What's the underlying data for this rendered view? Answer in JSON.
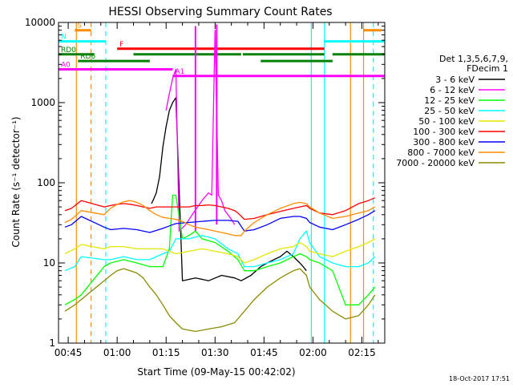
{
  "chart_data": {
    "type": "line",
    "title": "HESSI Observing Summary Count Rates",
    "xlabel": "Start Time (09-May-15 00:42:02)",
    "ylabel": "Count Rate (s⁻¹ detector⁻¹)",
    "x_unit": "minutes after 00:00 UT, 09-May-15",
    "xlim": [
      42.03,
      142
    ],
    "ylim": [
      1,
      10000
    ],
    "y_scale": "log",
    "grid": false,
    "x_ticks": [
      {
        "value": 45,
        "label": "00:45"
      },
      {
        "value": 60,
        "label": "01:00"
      },
      {
        "value": 75,
        "label": "01:15"
      },
      {
        "value": 90,
        "label": "01:30"
      },
      {
        "value": 105,
        "label": "01:45"
      },
      {
        "value": 120,
        "label": "02:00"
      },
      {
        "value": 135,
        "label": "02:15"
      }
    ],
    "y_ticks": [
      {
        "value": 1,
        "label": "1"
      },
      {
        "value": 10,
        "label": "10"
      },
      {
        "value": 100,
        "label": "100"
      },
      {
        "value": 1000,
        "label": "1000"
      },
      {
        "value": 10000,
        "label": "10000"
      }
    ],
    "legend": {
      "placement": "right",
      "header": [
        "Det 1,3,5,6,7,9,",
        "FDecim 1"
      ],
      "entries": [
        {
          "label": "3 - 6 keV",
          "color": "#000000"
        },
        {
          "label": "6 - 12 keV",
          "color": "#ff00ff"
        },
        {
          "label": "12 - 25 keV",
          "color": "#00ff00"
        },
        {
          "label": "25 - 50 keV",
          "color": "#00ffff"
        },
        {
          "label": "50 - 100 keV",
          "color": "#e6e600"
        },
        {
          "label": "100 - 300 keV",
          "color": "#ff0000"
        },
        {
          "label": "300 - 800 keV",
          "color": "#0000ff"
        },
        {
          "label": "800 - 7000 keV",
          "color": "#ff8c00"
        },
        {
          "label": "7000 - 20000 keV",
          "color": "#8b8b00"
        }
      ]
    },
    "series": [
      {
        "name": "3 - 6 keV",
        "color": "#000000",
        "x": [
          70.5,
          71,
          72,
          73,
          74,
          75,
          76,
          77,
          78,
          80,
          84,
          88,
          92,
          96,
          98,
          101,
          104,
          106,
          108,
          110,
          112,
          114,
          116,
          117,
          118
        ],
        "y": [
          55,
          60,
          75,
          120,
          280,
          500,
          800,
          1000,
          1150,
          6,
          6.5,
          6,
          7,
          6.5,
          6,
          7,
          9,
          10,
          11,
          12,
          14,
          12,
          10,
          9,
          8
        ]
      },
      {
        "name": "6 - 12 keV",
        "color": "#ff00ff",
        "x": [
          75,
          76,
          77,
          78,
          79,
          81,
          83,
          86,
          88,
          89,
          90,
          91,
          92,
          93,
          95,
          96
        ],
        "y": [
          800,
          1300,
          2000,
          2600,
          25,
          30,
          40,
          60,
          75,
          70,
          8000,
          70,
          60,
          45,
          35,
          30
        ]
      },
      {
        "name": "12 - 25 keV",
        "color": "#00ff00",
        "x": [
          44,
          47,
          49,
          56,
          58,
          62,
          66,
          70,
          74,
          76,
          77,
          78,
          80,
          82,
          84,
          86,
          90,
          94,
          97,
          99,
          102,
          106,
          110,
          114,
          116,
          118,
          119,
          122,
          126,
          130,
          134,
          137,
          139
        ],
        "y": [
          3,
          3.5,
          4,
          9,
          10,
          11,
          10,
          9,
          9,
          15,
          70,
          70,
          20,
          22,
          25,
          20,
          18,
          14,
          11,
          8,
          8,
          9,
          10,
          12,
          13,
          12,
          11,
          10,
          8,
          3,
          3,
          4,
          5
        ]
      },
      {
        "name": "25 - 50 keV",
        "color": "#00ffff",
        "x": [
          44,
          47,
          49,
          56,
          58,
          62,
          66,
          70,
          72,
          74,
          76,
          78,
          82,
          86,
          90,
          94,
          97,
          99,
          102,
          106,
          110,
          114,
          116,
          118,
          119,
          122,
          126,
          130,
          134,
          137,
          139
        ],
        "y": [
          8,
          9,
          12,
          11,
          11,
          12,
          11,
          11,
          12,
          13,
          14,
          20,
          20,
          22,
          20,
          15,
          13,
          9,
          9,
          10,
          11,
          13,
          20,
          25,
          18,
          12,
          10,
          9,
          9,
          10,
          12
        ]
      },
      {
        "name": "50 - 100 keV",
        "color": "#e6e600",
        "x": [
          44,
          47,
          49,
          56,
          58,
          62,
          66,
          70,
          74,
          78,
          82,
          86,
          90,
          94,
          97,
          99,
          102,
          106,
          110,
          114,
          116,
          118,
          119,
          122,
          126,
          130,
          134,
          137,
          139
        ],
        "y": [
          13,
          15,
          17,
          15,
          16,
          16,
          15,
          15,
          15,
          13,
          14,
          15,
          14,
          13,
          12,
          10,
          11,
          13,
          15,
          16,
          18,
          16,
          14,
          13,
          12,
          14,
          16,
          18,
          20
        ]
      },
      {
        "name": "100 - 300 keV",
        "color": "#ff0000",
        "x": [
          44,
          46,
          49,
          56,
          58,
          60,
          62,
          64,
          66,
          68,
          70,
          72,
          74,
          76,
          78,
          80,
          82,
          84,
          86,
          88,
          90,
          92,
          94,
          96,
          97,
          99,
          102,
          106,
          110,
          114,
          116,
          118,
          119,
          122,
          126,
          130,
          134,
          137,
          139
        ],
        "y": [
          45,
          48,
          60,
          50,
          52,
          54,
          55,
          54,
          52,
          50,
          48,
          50,
          50,
          50,
          50,
          50,
          50,
          52,
          52,
          53,
          52,
          50,
          48,
          45,
          42,
          35,
          36,
          40,
          44,
          48,
          50,
          52,
          48,
          42,
          40,
          45,
          55,
          60,
          65
        ]
      },
      {
        "name": "300 - 800 keV",
        "color": "#0000ff",
        "x": [
          44,
          46,
          49,
          56,
          58,
          62,
          66,
          70,
          74,
          76,
          78,
          82,
          86,
          90,
          94,
          97,
          99,
          102,
          106,
          110,
          114,
          116,
          118,
          119,
          122,
          126,
          130,
          134,
          137,
          139
        ],
        "y": [
          28,
          30,
          38,
          28,
          26,
          27,
          26,
          24,
          27,
          29,
          31,
          32,
          33,
          34,
          34,
          33,
          25,
          26,
          30,
          36,
          38,
          38,
          36,
          32,
          28,
          26,
          30,
          35,
          40,
          45
        ]
      },
      {
        "name": "800 - 7000 keV",
        "color": "#ff8c00",
        "x": [
          44,
          46,
          49,
          56,
          58,
          60,
          62,
          64,
          66,
          68,
          70,
          72,
          74,
          76,
          78,
          80,
          82,
          84,
          86,
          88,
          90,
          92,
          94,
          96,
          98,
          99,
          102,
          106,
          110,
          114,
          116,
          118,
          119,
          122,
          126,
          130,
          134,
          137,
          139
        ],
        "y": [
          32,
          35,
          45,
          40,
          48,
          54,
          58,
          60,
          57,
          52,
          45,
          40,
          37,
          36,
          35,
          33,
          30,
          28,
          27,
          26,
          25,
          24,
          23,
          22,
          22,
          25,
          32,
          40,
          48,
          55,
          57,
          55,
          50,
          42,
          36,
          38,
          42,
          45,
          50
        ]
      },
      {
        "name": "7000 - 20000 keV",
        "color": "#8b8b00",
        "x": [
          44,
          47,
          49,
          56,
          58,
          60,
          62,
          64,
          66,
          68,
          70,
          72,
          74,
          76,
          78,
          80,
          84,
          88,
          92,
          96,
          99,
          102,
          106,
          110,
          114,
          116,
          118,
          119,
          122,
          126,
          130,
          134,
          137,
          139
        ],
        "y": [
          2.5,
          3,
          3.5,
          6,
          7,
          8,
          8.5,
          8,
          7.5,
          6.5,
          5,
          4,
          3,
          2.2,
          1.8,
          1.5,
          1.4,
          1.5,
          1.6,
          1.8,
          2.5,
          3.5,
          5,
          6.5,
          8,
          8.5,
          7,
          5,
          3.5,
          2.5,
          2,
          2.2,
          3,
          4
        ]
      }
    ],
    "vertical_lines": [
      {
        "x": 47.5,
        "color": "#ff8c00",
        "style": "solid"
      },
      {
        "x": 52,
        "color": "#ff8c00",
        "style": "dashed"
      },
      {
        "x": 56.5,
        "color": "#00ffff",
        "style": "dashed"
      },
      {
        "x": 119.5,
        "color": "#00ffff",
        "style": "solid"
      },
      {
        "x": 123.5,
        "color": "#00ffff",
        "style": "solid"
      },
      {
        "x": 131.5,
        "color": "#ff8c00",
        "style": "solid"
      },
      {
        "x": 135.5,
        "color": "#ff8c00",
        "style": "solid"
      },
      {
        "x": 138.5,
        "color": "#00ffff",
        "style": "dashed"
      }
    ],
    "flag_bars": [
      {
        "label": "S",
        "color": "#ff8c00",
        "y": 8000,
        "segments": [
          [
            47,
            52
          ],
          [
            135.5,
            141
          ]
        ]
      },
      {
        "label": "N",
        "color": "#00ffff",
        "y": 5800,
        "segments": [
          [
            42.03,
            56.5
          ],
          [
            123.5,
            142
          ]
        ]
      },
      {
        "label": "F",
        "color": "#ff0000",
        "y": 4700,
        "segments": [
          [
            60,
            123.5
          ]
        ]
      },
      {
        "label": "RD0",
        "color": "#008000",
        "y": 4000,
        "segments": [
          [
            42.03,
            53
          ],
          [
            65,
            98
          ],
          [
            98.5,
            123.5
          ],
          [
            126,
            142
          ]
        ]
      },
      {
        "label": "RD6",
        "color": "#008000",
        "y": 3300,
        "segments": [
          [
            48,
            70
          ],
          [
            104,
            126
          ]
        ]
      },
      {
        "label": "A0",
        "color": "#ff00ff",
        "y": 2600,
        "segments": [
          [
            42.03,
            77
          ]
        ]
      },
      {
        "label": "A1",
        "color": "#ff00ff",
        "y": 2150,
        "segments": [
          [
            77,
            142
          ]
        ]
      }
    ],
    "spikes": [
      {
        "x": 84,
        "y_from": 25,
        "y_to": 9000,
        "color": "#ff00ff"
      },
      {
        "x": 90.5,
        "y_from": 30,
        "y_to": 9500,
        "color": "#ff00ff"
      }
    ],
    "footer": "18-Oct-2017 17:51"
  }
}
